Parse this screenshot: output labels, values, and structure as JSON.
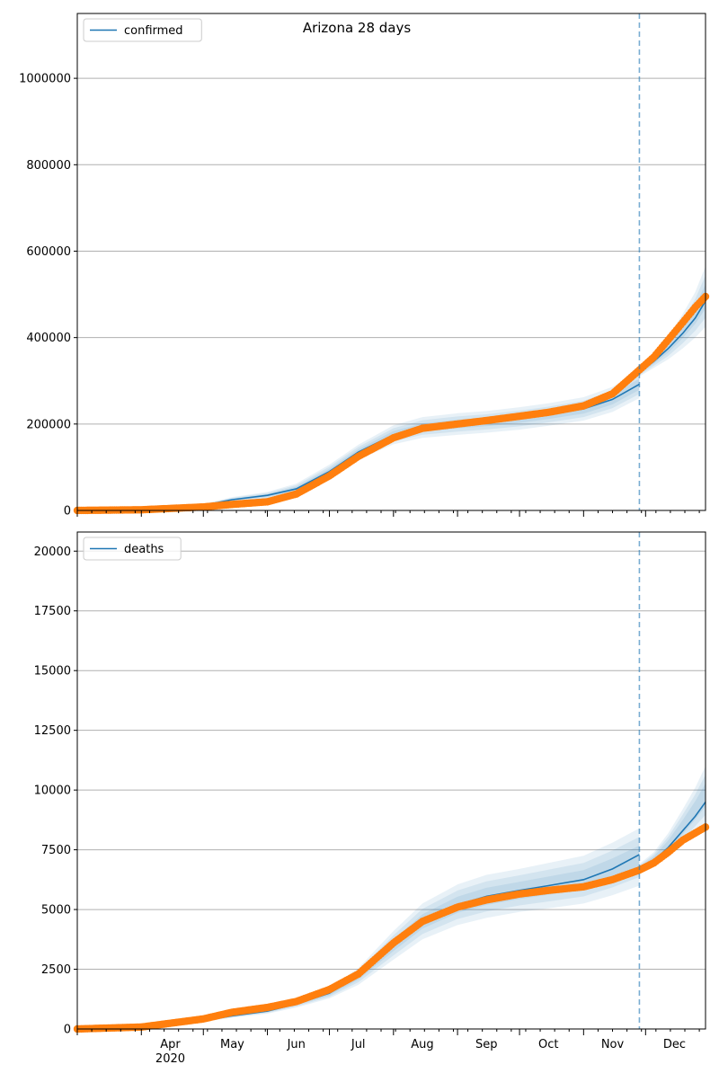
{
  "figure": {
    "title": "Arizona 28 days"
  },
  "chart_data": [
    {
      "type": "line",
      "title": "Arizona 28 days",
      "xlabel": "",
      "ylabel": "",
      "xlim": [
        "2020-03-01",
        "2020-12-30"
      ],
      "ylim": [
        0,
        1150000
      ],
      "yticks": [
        0,
        200000,
        400000,
        600000,
        800000,
        1000000
      ],
      "grid": "horizontal",
      "legend": {
        "position": "top-left",
        "entries": [
          "confirmed"
        ]
      },
      "forecast_start": "2020-11-28",
      "series": [
        {
          "name": "confirmed",
          "kind": "model-line",
          "color": "#1f77b4",
          "x": [
            "2020-03-01",
            "2020-04-01",
            "2020-05-01",
            "2020-05-15",
            "2020-06-01",
            "2020-06-15",
            "2020-07-01",
            "2020-07-15",
            "2020-08-01",
            "2020-08-15",
            "2020-09-01",
            "2020-09-15",
            "2020-10-01",
            "2020-10-15",
            "2020-11-01",
            "2020-11-15",
            "2020-11-28"
          ],
          "values": [
            0,
            2000,
            12000,
            25000,
            35000,
            50000,
            90000,
            135000,
            175000,
            192000,
            200000,
            205000,
            213000,
            222000,
            235000,
            257000,
            292000
          ]
        },
        {
          "name": "confirmed forecast",
          "kind": "model-line",
          "color": "#1f77b4",
          "x": [
            "2020-11-28",
            "2020-12-05",
            "2020-12-12",
            "2020-12-19",
            "2020-12-25",
            "2020-12-30"
          ],
          "values": [
            320000,
            345000,
            375000,
            410000,
            445000,
            485000
          ]
        },
        {
          "name": "confirmed observed",
          "kind": "observed-points",
          "color": "#ff7f0e",
          "x": [
            "2020-03-01",
            "2020-04-01",
            "2020-05-01",
            "2020-05-15",
            "2020-06-01",
            "2020-06-15",
            "2020-07-01",
            "2020-07-15",
            "2020-08-01",
            "2020-08-15",
            "2020-09-01",
            "2020-09-15",
            "2020-10-01",
            "2020-10-15",
            "2020-11-01",
            "2020-11-15",
            "2020-11-28",
            "2020-12-05",
            "2020-12-12",
            "2020-12-19",
            "2020-12-25",
            "2020-12-30"
          ],
          "values": [
            0,
            1500,
            8000,
            14000,
            20000,
            38000,
            80000,
            125000,
            168000,
            190000,
            200000,
            208000,
            218000,
            227000,
            242000,
            270000,
            325000,
            355000,
            395000,
            435000,
            470000,
            495000
          ]
        }
      ],
      "bands": [
        {
          "x": [
            "2020-03-01",
            "2020-04-01",
            "2020-05-01",
            "2020-05-15",
            "2020-06-01",
            "2020-06-15",
            "2020-07-01",
            "2020-07-15",
            "2020-08-01",
            "2020-08-15",
            "2020-09-01",
            "2020-09-15",
            "2020-10-01",
            "2020-10-15",
            "2020-11-01",
            "2020-11-15",
            "2020-11-28"
          ],
          "lower": [
            0,
            1500,
            9000,
            19000,
            27000,
            38000,
            74000,
            118000,
            153000,
            168000,
            175000,
            180000,
            187000,
            196000,
            208000,
            228000,
            260000
          ],
          "upper": [
            0,
            2500,
            15000,
            31000,
            43000,
            62000,
            106000,
            152000,
            197000,
            216000,
            225000,
            230000,
            239000,
            248000,
            262000,
            286000,
            324000
          ]
        },
        {
          "x": [
            "2020-11-28",
            "2020-12-05",
            "2020-12-12",
            "2020-12-19",
            "2020-12-25",
            "2020-12-30"
          ],
          "lower": [
            310000,
            330000,
            350000,
            375000,
            400000,
            425000
          ],
          "upper": [
            330000,
            362000,
            402000,
            455000,
            505000,
            565000
          ]
        }
      ]
    },
    {
      "type": "line",
      "title": "",
      "xlabel": "",
      "ylabel": "",
      "xlim": [
        "2020-03-01",
        "2020-12-30"
      ],
      "ylim": [
        0,
        20800
      ],
      "yticks": [
        0,
        2500,
        5000,
        7500,
        10000,
        12500,
        15000,
        17500,
        20000
      ],
      "xticks": [
        "Apr",
        "May",
        "Jun",
        "Jul",
        "Aug",
        "Sep",
        "Oct",
        "Nov",
        "Dec"
      ],
      "xtick_year": "2020",
      "grid": "horizontal",
      "legend": {
        "position": "top-left",
        "entries": [
          "deaths"
        ]
      },
      "forecast_start": "2020-11-28",
      "series": [
        {
          "name": "deaths",
          "kind": "model-line",
          "color": "#1f77b4",
          "x": [
            "2020-03-01",
            "2020-04-01",
            "2020-05-01",
            "2020-05-15",
            "2020-06-01",
            "2020-06-15",
            "2020-07-01",
            "2020-07-15",
            "2020-08-01",
            "2020-08-15",
            "2020-09-01",
            "2020-09-15",
            "2020-10-01",
            "2020-10-15",
            "2020-11-01",
            "2020-11-15",
            "2020-11-28"
          ],
          "values": [
            0,
            50,
            350,
            550,
            750,
            1050,
            1500,
            2200,
            3500,
            4500,
            5200,
            5550,
            5800,
            6000,
            6250,
            6700,
            7300
          ]
        },
        {
          "name": "deaths forecast",
          "kind": "model-line",
          "color": "#1f77b4",
          "x": [
            "2020-11-28",
            "2020-12-05",
            "2020-12-12",
            "2020-12-19",
            "2020-12-25",
            "2020-12-30"
          ],
          "values": [
            6700,
            7050,
            7600,
            8300,
            8900,
            9500
          ]
        },
        {
          "name": "deaths observed",
          "kind": "observed-points",
          "color": "#ff7f0e",
          "x": [
            "2020-03-01",
            "2020-04-01",
            "2020-05-01",
            "2020-05-15",
            "2020-06-01",
            "2020-06-15",
            "2020-07-01",
            "2020-07-15",
            "2020-08-01",
            "2020-08-15",
            "2020-09-01",
            "2020-09-15",
            "2020-10-01",
            "2020-10-15",
            "2020-11-01",
            "2020-11-15",
            "2020-11-28",
            "2020-12-05",
            "2020-12-12",
            "2020-12-19",
            "2020-12-25",
            "2020-12-30"
          ],
          "values": [
            0,
            80,
            420,
            700,
            900,
            1150,
            1650,
            2300,
            3600,
            4500,
            5100,
            5400,
            5650,
            5800,
            5950,
            6250,
            6650,
            6950,
            7400,
            7900,
            8200,
            8450
          ]
        }
      ],
      "bands": [
        {
          "x": [
            "2020-03-01",
            "2020-04-01",
            "2020-05-01",
            "2020-05-15",
            "2020-06-01",
            "2020-06-15",
            "2020-07-01",
            "2020-07-15",
            "2020-08-01",
            "2020-08-15",
            "2020-09-01",
            "2020-09-15",
            "2020-10-01",
            "2020-10-15",
            "2020-11-01",
            "2020-11-15",
            "2020-11-28"
          ],
          "lower": [
            0,
            40,
            300,
            470,
            640,
            900,
            1280,
            1850,
            2900,
            3750,
            4350,
            4650,
            4900,
            5050,
            5250,
            5600,
            6000
          ],
          "upper": [
            0,
            60,
            400,
            630,
            860,
            1200,
            1720,
            2550,
            4100,
            5250,
            6050,
            6450,
            6700,
            6950,
            7250,
            7800,
            8400
          ]
        },
        {
          "x": [
            "2020-11-28",
            "2020-12-05",
            "2020-12-12",
            "2020-12-19",
            "2020-12-25",
            "2020-12-30"
          ],
          "lower": [
            6500,
            6800,
            7200,
            7700,
            8200,
            8600
          ],
          "upper": [
            6900,
            7400,
            8200,
            9200,
            10100,
            11000
          ]
        }
      ]
    }
  ]
}
